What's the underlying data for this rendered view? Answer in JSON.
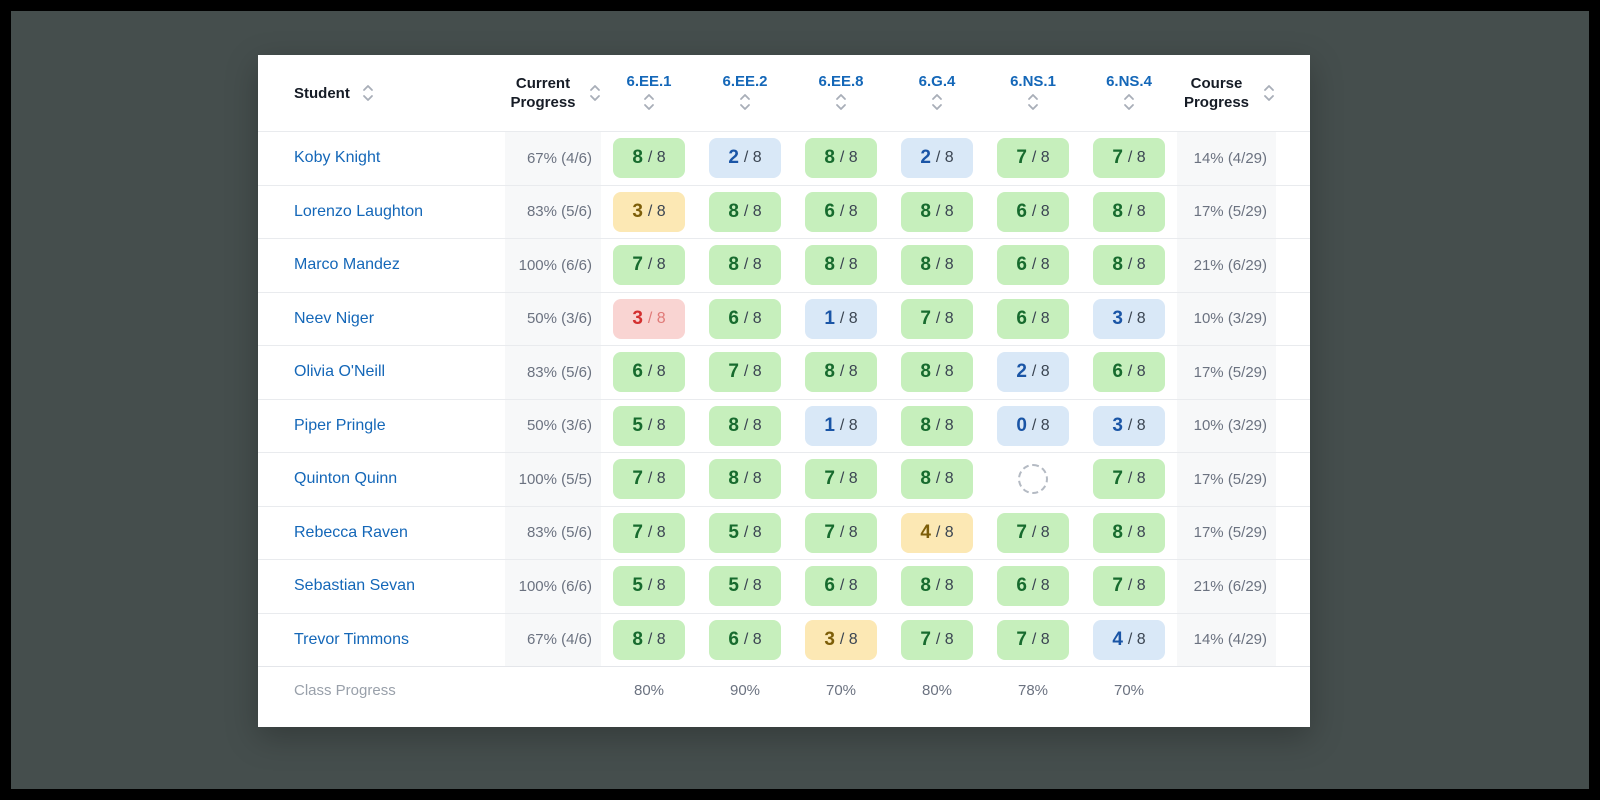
{
  "table": {
    "header": {
      "student": {
        "label": "Student"
      },
      "current_progress": {
        "label": "Current Progress"
      },
      "standards": [
        {
          "label": "6.EE.1"
        },
        {
          "label": "6.EE.2"
        },
        {
          "label": "6.EE.8"
        },
        {
          "label": "6.G.4"
        },
        {
          "label": "6.NS.1"
        },
        {
          "label": "6.NS.4"
        }
      ],
      "course_progress": {
        "label": "Course Progress"
      }
    },
    "rows": [
      {
        "student": "Koby Knight",
        "current_progress": "67% (4/6)",
        "course_progress": "14% (4/29)",
        "scores": [
          {
            "value": "8",
            "max": "8",
            "status": "green"
          },
          {
            "value": "2",
            "max": "8",
            "status": "blue"
          },
          {
            "value": "8",
            "max": "8",
            "status": "green"
          },
          {
            "value": "2",
            "max": "8",
            "status": "blue"
          },
          {
            "value": "7",
            "max": "8",
            "status": "green"
          },
          {
            "value": "7",
            "max": "8",
            "status": "green"
          }
        ]
      },
      {
        "student": "Lorenzo Laughton",
        "current_progress": "83% (5/6)",
        "course_progress": "17% (5/29)",
        "scores": [
          {
            "value": "3",
            "max": "8",
            "status": "yellow"
          },
          {
            "value": "8",
            "max": "8",
            "status": "green"
          },
          {
            "value": "6",
            "max": "8",
            "status": "green"
          },
          {
            "value": "8",
            "max": "8",
            "status": "green"
          },
          {
            "value": "6",
            "max": "8",
            "status": "green"
          },
          {
            "value": "8",
            "max": "8",
            "status": "green"
          }
        ]
      },
      {
        "student": "Marco Mandez",
        "current_progress": "100% (6/6)",
        "course_progress": "21% (6/29)",
        "scores": [
          {
            "value": "7",
            "max": "8",
            "status": "green"
          },
          {
            "value": "8",
            "max": "8",
            "status": "green"
          },
          {
            "value": "8",
            "max": "8",
            "status": "green"
          },
          {
            "value": "8",
            "max": "8",
            "status": "green"
          },
          {
            "value": "6",
            "max": "8",
            "status": "green"
          },
          {
            "value": "8",
            "max": "8",
            "status": "green"
          }
        ]
      },
      {
        "student": "Neev Niger",
        "current_progress": "50% (3/6)",
        "course_progress": "10% (3/29)",
        "scores": [
          {
            "value": "3",
            "max": "8",
            "status": "red"
          },
          {
            "value": "6",
            "max": "8",
            "status": "green"
          },
          {
            "value": "1",
            "max": "8",
            "status": "blue"
          },
          {
            "value": "7",
            "max": "8",
            "status": "green"
          },
          {
            "value": "6",
            "max": "8",
            "status": "green"
          },
          {
            "value": "3",
            "max": "8",
            "status": "blue"
          }
        ]
      },
      {
        "student": "Olivia O'Neill",
        "current_progress": "83% (5/6)",
        "course_progress": "17% (5/29)",
        "scores": [
          {
            "value": "6",
            "max": "8",
            "status": "green"
          },
          {
            "value": "7",
            "max": "8",
            "status": "green"
          },
          {
            "value": "8",
            "max": "8",
            "status": "green"
          },
          {
            "value": "8",
            "max": "8",
            "status": "green"
          },
          {
            "value": "2",
            "max": "8",
            "status": "blue"
          },
          {
            "value": "6",
            "max": "8",
            "status": "green"
          }
        ]
      },
      {
        "student": "Piper Pringle",
        "current_progress": "50% (3/6)",
        "course_progress": "10% (3/29)",
        "scores": [
          {
            "value": "5",
            "max": "8",
            "status": "green"
          },
          {
            "value": "8",
            "max": "8",
            "status": "green"
          },
          {
            "value": "1",
            "max": "8",
            "status": "blue"
          },
          {
            "value": "8",
            "max": "8",
            "status": "green"
          },
          {
            "value": "0",
            "max": "8",
            "status": "blue"
          },
          {
            "value": "3",
            "max": "8",
            "status": "blue"
          }
        ]
      },
      {
        "student": "Quinton Quinn",
        "current_progress": "100% (5/5)",
        "course_progress": "17% (5/29)",
        "scores": [
          {
            "value": "7",
            "max": "8",
            "status": "green"
          },
          {
            "value": "8",
            "max": "8",
            "status": "green"
          },
          {
            "value": "7",
            "max": "8",
            "status": "green"
          },
          {
            "value": "8",
            "max": "8",
            "status": "green"
          },
          {
            "status": "pending"
          },
          {
            "value": "7",
            "max": "8",
            "status": "green"
          }
        ]
      },
      {
        "student": "Rebecca Raven",
        "current_progress": "83% (5/6)",
        "course_progress": "17% (5/29)",
        "scores": [
          {
            "value": "7",
            "max": "8",
            "status": "green"
          },
          {
            "value": "5",
            "max": "8",
            "status": "green"
          },
          {
            "value": "7",
            "max": "8",
            "status": "green"
          },
          {
            "value": "4",
            "max": "8",
            "status": "yellow"
          },
          {
            "value": "7",
            "max": "8",
            "status": "green"
          },
          {
            "value": "8",
            "max": "8",
            "status": "green"
          }
        ]
      },
      {
        "student": "Sebastian Sevan",
        "current_progress": "100% (6/6)",
        "course_progress": "21% (6/29)",
        "scores": [
          {
            "value": "5",
            "max": "8",
            "status": "green"
          },
          {
            "value": "5",
            "max": "8",
            "status": "green"
          },
          {
            "value": "6",
            "max": "8",
            "status": "green"
          },
          {
            "value": "8",
            "max": "8",
            "status": "green"
          },
          {
            "value": "6",
            "max": "8",
            "status": "green"
          },
          {
            "value": "7",
            "max": "8",
            "status": "green"
          }
        ]
      },
      {
        "student": "Trevor Timmons",
        "current_progress": "67% (4/6)",
        "course_progress": "14% (4/29)",
        "scores": [
          {
            "value": "8",
            "max": "8",
            "status": "green"
          },
          {
            "value": "6",
            "max": "8",
            "status": "green"
          },
          {
            "value": "3",
            "max": "8",
            "status": "yellow"
          },
          {
            "value": "7",
            "max": "8",
            "status": "green"
          },
          {
            "value": "7",
            "max": "8",
            "status": "green"
          },
          {
            "value": "4",
            "max": "8",
            "status": "blue"
          }
        ]
      }
    ],
    "footer": {
      "label": "Class Progress",
      "values": [
        "80%",
        "90%",
        "70%",
        "80%",
        "78%",
        "70%"
      ]
    }
  },
  "colors": {
    "backdrop": "#454e4d",
    "frame": "#000000",
    "link_blue": "#1467b8",
    "score_green_bg": "#c6efbc",
    "score_green_text": "#176b2e",
    "score_blue_bg": "#d9e8f7",
    "score_blue_text": "#1a55a6",
    "score_yellow_bg": "#fce8b4",
    "score_yellow_text": "#7d5e08",
    "score_red_bg": "#f9d4d2",
    "score_red_text": "#d32f2f",
    "muted_text": "#6b7280",
    "column_shade": "#f7f8f9"
  }
}
